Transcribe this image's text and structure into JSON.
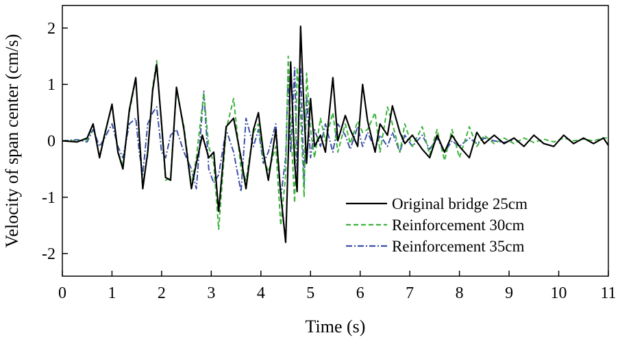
{
  "chart_data": {
    "type": "line",
    "xlabel": "Time (s)",
    "ylabel": "Velocity of span center (cm/s)",
    "xlim": [
      0,
      11
    ],
    "ylim": [
      -2.4,
      2.4
    ],
    "xticks": [
      "0",
      "1",
      "2",
      "3",
      "4",
      "5",
      "6",
      "7",
      "8",
      "9",
      "10",
      "11"
    ],
    "yticks": [
      "-2",
      "-1",
      "0",
      "1",
      "2"
    ],
    "grid": false,
    "legend_position": "bottom-right",
    "series": [
      {
        "name": "Original bridge 25cm",
        "color": "#000000",
        "style": "solid",
        "points": [
          [
            0,
            0
          ],
          [
            0.3,
            -0.02
          ],
          [
            0.5,
            0.05
          ],
          [
            0.62,
            0.3
          ],
          [
            0.75,
            -0.3
          ],
          [
            0.85,
            0.1
          ],
          [
            1.0,
            0.65
          ],
          [
            1.12,
            -0.2
          ],
          [
            1.22,
            -0.5
          ],
          [
            1.35,
            0.55
          ],
          [
            1.48,
            1.12
          ],
          [
            1.55,
            0.1
          ],
          [
            1.62,
            -0.85
          ],
          [
            1.72,
            -0.2
          ],
          [
            1.82,
            0.9
          ],
          [
            1.9,
            1.35
          ],
          [
            2.0,
            0.3
          ],
          [
            2.08,
            -0.65
          ],
          [
            2.18,
            -0.7
          ],
          [
            2.3,
            0.95
          ],
          [
            2.45,
            0.2
          ],
          [
            2.6,
            -0.85
          ],
          [
            2.7,
            -0.4
          ],
          [
            2.82,
            0.1
          ],
          [
            2.95,
            -0.3
          ],
          [
            3.05,
            -0.2
          ],
          [
            3.15,
            -1.25
          ],
          [
            3.3,
            0.25
          ],
          [
            3.45,
            0.4
          ],
          [
            3.6,
            -0.3
          ],
          [
            3.7,
            -0.85
          ],
          [
            3.85,
            0.2
          ],
          [
            3.95,
            0.5
          ],
          [
            4.05,
            -0.2
          ],
          [
            4.15,
            -0.7
          ],
          [
            4.3,
            0.2
          ],
          [
            4.4,
            -0.95
          ],
          [
            4.5,
            -1.8
          ],
          [
            4.55,
            -0.3
          ],
          [
            4.6,
            1.4
          ],
          [
            4.68,
            -0.4
          ],
          [
            4.73,
            -0.9
          ],
          [
            4.8,
            2.03
          ],
          [
            4.87,
            0.5
          ],
          [
            4.92,
            -0.4
          ],
          [
            5.0,
            0.75
          ],
          [
            5.08,
            -0.1
          ],
          [
            5.2,
            0.1
          ],
          [
            5.3,
            -0.2
          ],
          [
            5.45,
            1.12
          ],
          [
            5.55,
            0.0
          ],
          [
            5.7,
            0.45
          ],
          [
            5.8,
            0.2
          ],
          [
            5.95,
            -0.1
          ],
          [
            6.05,
            1.0
          ],
          [
            6.15,
            0.35
          ],
          [
            6.3,
            -0.2
          ],
          [
            6.4,
            0.3
          ],
          [
            6.55,
            0.1
          ],
          [
            6.65,
            0.62
          ],
          [
            6.8,
            0.15
          ],
          [
            6.9,
            -0.05
          ],
          [
            7.05,
            0.1
          ],
          [
            7.25,
            -0.15
          ],
          [
            7.4,
            -0.3
          ],
          [
            7.55,
            0.1
          ],
          [
            7.7,
            -0.2
          ],
          [
            7.85,
            0.1
          ],
          [
            8.0,
            -0.1
          ],
          [
            8.2,
            -0.3
          ],
          [
            8.35,
            0.15
          ],
          [
            8.5,
            -0.05
          ],
          [
            8.7,
            0.1
          ],
          [
            8.9,
            -0.05
          ],
          [
            9.1,
            0.05
          ],
          [
            9.3,
            -0.1
          ],
          [
            9.5,
            0.1
          ],
          [
            9.7,
            -0.05
          ],
          [
            9.9,
            -0.1
          ],
          [
            10.1,
            0.1
          ],
          [
            10.3,
            -0.05
          ],
          [
            10.5,
            0.05
          ],
          [
            10.7,
            -0.05
          ],
          [
            10.9,
            0.05
          ],
          [
            11.0,
            -0.08
          ]
        ]
      },
      {
        "name": "Reinforcement 30cm",
        "color": "#3cb33c",
        "style": "dashed",
        "points": [
          [
            0,
            0
          ],
          [
            0.3,
            0.0
          ],
          [
            0.5,
            0.02
          ],
          [
            0.62,
            0.28
          ],
          [
            0.75,
            -0.28
          ],
          [
            0.85,
            0.12
          ],
          [
            1.0,
            0.62
          ],
          [
            1.12,
            -0.18
          ],
          [
            1.22,
            -0.45
          ],
          [
            1.35,
            0.5
          ],
          [
            1.48,
            1.1
          ],
          [
            1.55,
            0.12
          ],
          [
            1.62,
            -0.78
          ],
          [
            1.72,
            -0.25
          ],
          [
            1.82,
            0.95
          ],
          [
            1.9,
            1.42
          ],
          [
            2.0,
            0.25
          ],
          [
            2.08,
            -0.7
          ],
          [
            2.18,
            -0.65
          ],
          [
            2.3,
            0.9
          ],
          [
            2.45,
            0.25
          ],
          [
            2.6,
            -0.8
          ],
          [
            2.7,
            -0.3
          ],
          [
            2.85,
            0.85
          ],
          [
            2.95,
            -0.1
          ],
          [
            3.05,
            -0.4
          ],
          [
            3.15,
            -1.57
          ],
          [
            3.3,
            0.2
          ],
          [
            3.45,
            0.75
          ],
          [
            3.6,
            -0.5
          ],
          [
            3.7,
            -0.7
          ],
          [
            3.85,
            0.15
          ],
          [
            3.95,
            0.3
          ],
          [
            4.05,
            -0.3
          ],
          [
            4.15,
            -0.55
          ],
          [
            4.3,
            -0.1
          ],
          [
            4.4,
            -1.5
          ],
          [
            4.5,
            -0.6
          ],
          [
            4.55,
            1.5
          ],
          [
            4.6,
            0.3
          ],
          [
            4.68,
            -1.1
          ],
          [
            4.73,
            1.3
          ],
          [
            4.8,
            0.5
          ],
          [
            4.87,
            -1.0
          ],
          [
            4.92,
            1.2
          ],
          [
            5.0,
            0.2
          ],
          [
            5.08,
            -0.3
          ],
          [
            5.2,
            0.4
          ],
          [
            5.3,
            0.0
          ],
          [
            5.45,
            0.5
          ],
          [
            5.55,
            -0.2
          ],
          [
            5.7,
            0.3
          ],
          [
            5.8,
            -0.05
          ],
          [
            5.95,
            0.35
          ],
          [
            6.05,
            0.15
          ],
          [
            6.15,
            0.2
          ],
          [
            6.3,
            0.5
          ],
          [
            6.4,
            -0.2
          ],
          [
            6.55,
            0.6
          ],
          [
            6.65,
            0.3
          ],
          [
            6.8,
            -0.2
          ],
          [
            6.9,
            0.3
          ],
          [
            7.05,
            -0.1
          ],
          [
            7.25,
            0.25
          ],
          [
            7.4,
            -0.25
          ],
          [
            7.55,
            0.2
          ],
          [
            7.7,
            -0.35
          ],
          [
            7.85,
            0.2
          ],
          [
            8.0,
            -0.3
          ],
          [
            8.2,
            0.25
          ],
          [
            8.35,
            -0.1
          ],
          [
            8.5,
            0.1
          ],
          [
            8.7,
            -0.05
          ],
          [
            8.9,
            0.05
          ],
          [
            9.1,
            -0.05
          ],
          [
            9.3,
            0.05
          ],
          [
            9.5,
            -0.03
          ],
          [
            9.7,
            0.03
          ],
          [
            9.9,
            -0.02
          ],
          [
            10.1,
            0.05
          ],
          [
            10.3,
            0.0
          ],
          [
            10.5,
            0.03
          ],
          [
            10.7,
            0.0
          ],
          [
            10.9,
            0.05
          ],
          [
            11.0,
            0.05
          ]
        ]
      },
      {
        "name": "Reinforcement 35cm",
        "color": "#3b4fa8",
        "style": "dashdot",
        "points": [
          [
            0,
            0
          ],
          [
            0.3,
            0.02
          ],
          [
            0.5,
            -0.02
          ],
          [
            0.62,
            0.2
          ],
          [
            0.75,
            -0.1
          ],
          [
            0.85,
            0.05
          ],
          [
            1.0,
            0.3
          ],
          [
            1.12,
            -0.1
          ],
          [
            1.22,
            -0.3
          ],
          [
            1.35,
            0.3
          ],
          [
            1.48,
            0.4
          ],
          [
            1.55,
            -0.2
          ],
          [
            1.62,
            -0.6
          ],
          [
            1.72,
            0.3
          ],
          [
            1.82,
            0.5
          ],
          [
            1.9,
            0.6
          ],
          [
            2.0,
            -0.2
          ],
          [
            2.08,
            -0.3
          ],
          [
            2.18,
            0.1
          ],
          [
            2.3,
            0.2
          ],
          [
            2.45,
            -0.2
          ],
          [
            2.6,
            -0.5
          ],
          [
            2.7,
            -0.85
          ],
          [
            2.85,
            0.88
          ],
          [
            2.95,
            -0.5
          ],
          [
            3.05,
            -0.75
          ],
          [
            3.15,
            -0.6
          ],
          [
            3.3,
            0.2
          ],
          [
            3.45,
            -0.2
          ],
          [
            3.6,
            -0.9
          ],
          [
            3.7,
            0.4
          ],
          [
            3.85,
            -0.1
          ],
          [
            3.95,
            0.2
          ],
          [
            4.05,
            -0.4
          ],
          [
            4.15,
            -0.2
          ],
          [
            4.3,
            0.3
          ],
          [
            4.4,
            -1.0
          ],
          [
            4.5,
            -0.3
          ],
          [
            4.55,
            1.2
          ],
          [
            4.6,
            -0.2
          ],
          [
            4.68,
            1.3
          ],
          [
            4.73,
            -0.6
          ],
          [
            4.8,
            1.28
          ],
          [
            4.87,
            -0.8
          ],
          [
            4.92,
            0.8
          ],
          [
            5.0,
            -0.3
          ],
          [
            5.08,
            0.2
          ],
          [
            5.2,
            -0.1
          ],
          [
            5.3,
            0.3
          ],
          [
            5.45,
            -0.2
          ],
          [
            5.55,
            0.3
          ],
          [
            5.7,
            0.1
          ],
          [
            5.8,
            -0.15
          ],
          [
            5.95,
            0.25
          ],
          [
            6.05,
            -0.1
          ],
          [
            6.15,
            0.15
          ],
          [
            6.3,
            -0.15
          ],
          [
            6.4,
            0.1
          ],
          [
            6.55,
            -0.1
          ],
          [
            6.65,
            0.15
          ],
          [
            6.8,
            -0.2
          ],
          [
            6.9,
            0.1
          ],
          [
            7.05,
            -0.1
          ],
          [
            7.25,
            0.1
          ],
          [
            7.4,
            -0.15
          ],
          [
            7.55,
            0.05
          ],
          [
            7.7,
            -0.2
          ],
          [
            7.85,
            0.0
          ],
          [
            8.0,
            -0.1
          ],
          [
            8.2,
            0.05
          ],
          [
            8.35,
            -0.05
          ],
          [
            8.5,
            0.05
          ],
          [
            8.7,
            0.0
          ],
          [
            8.9,
            -0.03
          ],
          [
            9.1,
            0.02
          ]
        ]
      }
    ]
  }
}
